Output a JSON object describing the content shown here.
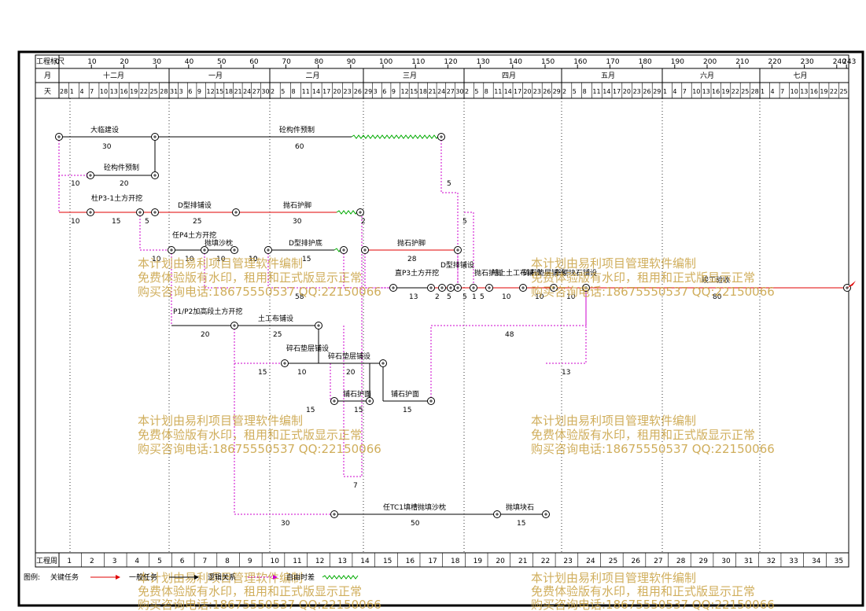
{
  "header": {
    "scale_label": "工程标尺",
    "month_label": "月",
    "day_label": "天",
    "week_label": "工程周",
    "scale_ticks": [
      "0",
      "10",
      "20",
      "30",
      "40",
      "50",
      "60",
      "70",
      "80",
      "90",
      "100",
      "110",
      "120",
      "130",
      "140",
      "150",
      "160",
      "170",
      "180",
      "190",
      "200",
      "210",
      "220",
      "230",
      "240",
      "243"
    ],
    "months": [
      "十二月",
      "一月",
      "二月",
      "三月",
      "四月",
      "五月",
      "六月",
      "七月"
    ],
    "days": [
      [
        "28",
        "1",
        "4",
        "7",
        "10",
        "13",
        "16",
        "19",
        "22",
        "25",
        "28"
      ],
      [
        "31",
        "3",
        "6",
        "9",
        "12",
        "15",
        "18",
        "21",
        "24",
        "27",
        "30"
      ],
      [
        "2",
        "5",
        "8",
        "11",
        "14",
        "17",
        "20",
        "23",
        "26"
      ],
      [
        "29",
        "3",
        "6",
        "9",
        "12",
        "15",
        "18",
        "21",
        "24",
        "27",
        "30"
      ],
      [
        "2",
        "5",
        "8",
        "11",
        "14",
        "17",
        "20",
        "23",
        "26",
        "29"
      ],
      [
        "2",
        "5",
        "8",
        "11",
        "14",
        "17",
        "20",
        "23",
        "26",
        "29"
      ],
      [
        "1",
        "4",
        "7",
        "10",
        "13",
        "16",
        "19",
        "22",
        "25",
        "28"
      ],
      [
        "1",
        "4",
        "7",
        "10",
        "13",
        "16",
        "19",
        "22",
        "25"
      ]
    ],
    "weeks": [
      "1",
      "2",
      "3",
      "4",
      "5",
      "6",
      "7",
      "8",
      "9",
      "10",
      "11",
      "12",
      "13",
      "14",
      "15",
      "16",
      "17",
      "18",
      "19",
      "20",
      "21",
      "22",
      "23",
      "24",
      "25",
      "26",
      "27",
      "28",
      "29",
      "30",
      "31",
      "32",
      "33",
      "34",
      "35"
    ]
  },
  "tasks": {
    "t1": {
      "name": "大临建设",
      "duration": "30"
    },
    "t2": {
      "name": "砼构件预制",
      "duration": "60"
    },
    "t3": {
      "name": "砼构件预制",
      "duration": "20"
    },
    "t4": {
      "name": "杜P3-1土方开挖",
      "duration": "15"
    },
    "t5": {
      "name": "D型排铺设",
      "duration": "25"
    },
    "t6": {
      "name": "抛石护脚",
      "duration": "30"
    },
    "t7": {
      "name": "任P4土方开挖",
      "duration": "10"
    },
    "t8": {
      "name": "抛填沙枕",
      "duration": "10"
    },
    "t9": {
      "name": "D型排护底",
      "duration": "15"
    },
    "t10": {
      "name": "抛石护脚",
      "duration": "28"
    },
    "t11": {
      "name": "直P3土方开挖",
      "duration": "13"
    },
    "t12": {
      "name": "D型排铺设",
      "duration": "5"
    },
    "t13": {
      "name": "抛石护脚",
      "duration": "5"
    },
    "t14": {
      "name": "陆上土工布铺设",
      "duration": "10"
    },
    "t15": {
      "name": "碎石垫层铺设",
      "duration": "10"
    },
    "t16": {
      "name": "干砌块石铺设",
      "duration": "10"
    },
    "t17": {
      "name": "竣工验收",
      "duration": "80"
    },
    "t18": {
      "name": "P1/P2加高段土方开挖",
      "duration": "20"
    },
    "t19": {
      "name": "土工布铺设",
      "duration": "25"
    },
    "t20": {
      "name": "碎石垫层铺设",
      "duration": "10"
    },
    "t21": {
      "name": "碎石垫层铺设",
      "duration": "20"
    },
    "t22": {
      "name": "铺石护面",
      "duration": "15"
    },
    "t23": {
      "name": "铺石护面",
      "duration": "15"
    },
    "t24": {
      "name": "任TC1填槽抛填沙枕",
      "duration": "50"
    },
    "t25": {
      "name": "抛填块石",
      "duration": "15"
    }
  },
  "float_labels": [
    "10",
    "10",
    "10",
    "5",
    "10",
    "10",
    "2",
    "5",
    "58",
    "2",
    "5",
    "5",
    "48",
    "15",
    "15",
    "13",
    "7",
    "30",
    "1"
  ],
  "legend": {
    "title": "图例:",
    "critical": "关键任务",
    "general": "一般任务",
    "logic": "逻辑关系",
    "free_float": "自由时差"
  },
  "watermark": {
    "line1": "本计划由易利项目管理软件编制",
    "line2": "免费体验版有水印，租用和正式版显示正常",
    "line3": "购买咨询电话:18675550537 QQ:22150066"
  },
  "colors": {
    "critical": "#e00000",
    "general": "#000000",
    "logic": "#cc00cc",
    "free_float": "#00aa00",
    "watermark": "#c8a040",
    "grid": "#000000"
  }
}
